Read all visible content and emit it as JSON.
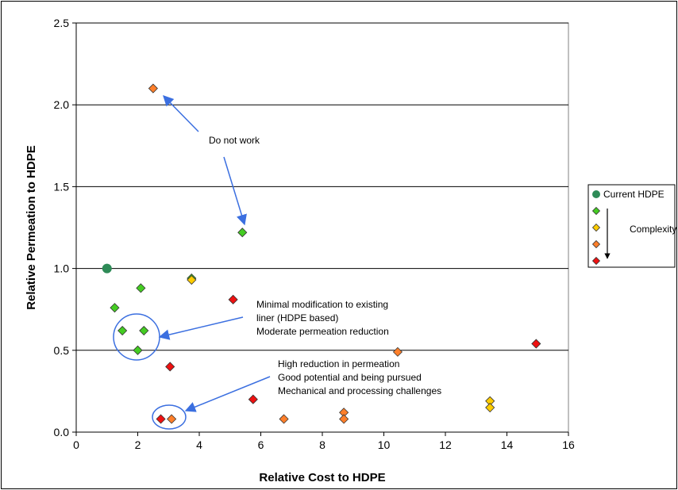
{
  "chart_data": {
    "type": "scatter",
    "xlabel": "Relative Cost to HDPE",
    "ylabel": "Relative Permeation to HDPE",
    "xlim": [
      0,
      16
    ],
    "ylim": [
      0,
      2.5
    ],
    "x_ticks": [
      "0",
      "2",
      "4",
      "6",
      "8",
      "10",
      "12",
      "14",
      "16"
    ],
    "y_ticks": [
      "0.0",
      "0.5",
      "1.0",
      "1.5",
      "2.0",
      "2.5"
    ],
    "grid": "horizontal",
    "legend_position": "right",
    "series": [
      {
        "name": "Current HDPE",
        "marker": "circle",
        "color": "#2e8b57",
        "points": [
          {
            "x": 1.0,
            "y": 1.0
          }
        ]
      },
      {
        "marker": "diamond",
        "color": "#44cc22",
        "points": [
          {
            "x": 1.25,
            "y": 0.76
          },
          {
            "x": 1.5,
            "y": 0.62
          },
          {
            "x": 2.0,
            "y": 0.5
          },
          {
            "x": 2.1,
            "y": 0.88
          },
          {
            "x": 2.2,
            "y": 0.62
          },
          {
            "x": 3.75,
            "y": 0.94
          },
          {
            "x": 5.4,
            "y": 1.22
          }
        ]
      },
      {
        "marker": "diamond",
        "color": "#ffcc00",
        "points": [
          {
            "x": 3.75,
            "y": 0.93
          },
          {
            "x": 13.45,
            "y": 0.19
          },
          {
            "x": 13.45,
            "y": 0.15
          }
        ]
      },
      {
        "marker": "diamond",
        "color": "#ff7f2a",
        "points": [
          {
            "x": 2.5,
            "y": 2.1
          },
          {
            "x": 3.1,
            "y": 0.08
          },
          {
            "x": 6.75,
            "y": 0.08
          },
          {
            "x": 8.7,
            "y": 0.12
          },
          {
            "x": 8.7,
            "y": 0.08
          },
          {
            "x": 10.45,
            "y": 0.49
          }
        ]
      },
      {
        "marker": "diamond",
        "color": "#ee1111",
        "points": [
          {
            "x": 2.75,
            "y": 0.08
          },
          {
            "x": 3.05,
            "y": 0.4
          },
          {
            "x": 5.1,
            "y": 0.81
          },
          {
            "x": 5.75,
            "y": 0.2
          },
          {
            "x": 14.95,
            "y": 0.54
          }
        ]
      }
    ],
    "legend": {
      "entries": [
        {
          "label": "Current HDPE",
          "marker": "circle",
          "color": "#2e8b57"
        },
        {
          "label": "",
          "marker": "diamond",
          "color": "#44cc22"
        },
        {
          "label": "",
          "marker": "diamond",
          "color": "#ffcc00"
        },
        {
          "label": "",
          "marker": "diamond",
          "color": "#ff7f2a"
        },
        {
          "label": "",
          "marker": "diamond",
          "color": "#ee1111"
        }
      ],
      "arrow_label": "Complexity"
    },
    "annotations": [
      {
        "id": "do-not-work",
        "lines": [
          "Do not work"
        ]
      },
      {
        "id": "minimal-mod",
        "lines": [
          "Minimal modification to existing",
          "liner (HDPE based)",
          "Moderate permeation reduction"
        ]
      },
      {
        "id": "high-reduction",
        "lines": [
          "High reduction in permeation",
          "Good potential and being pursued",
          "Mechanical and processing challenges"
        ]
      }
    ]
  }
}
